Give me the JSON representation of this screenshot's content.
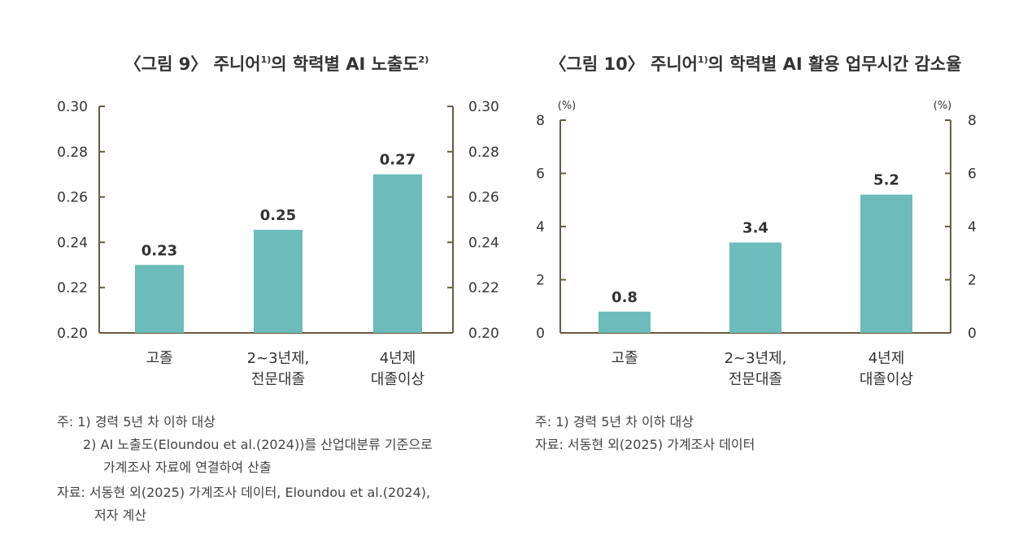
{
  "chart_data": [
    {
      "type": "bar",
      "title": "〈그림 9〉 주니어",
      "title_sup1": "1)",
      "title_mid": "의 학력별 AI 노출도",
      "title_sup2": "2)",
      "categories": [
        [
          "고졸"
        ],
        [
          "2~3년제,",
          "전문대졸"
        ],
        [
          "4년제",
          "대졸이상"
        ]
      ],
      "values": [
        0.23,
        0.25,
        0.27
      ],
      "value_labels": [
        "0.23",
        "0.25",
        "0.27"
      ],
      "bar_heights_data": [
        0.23,
        0.2455,
        0.27
      ],
      "ylim": [
        0.2,
        0.3
      ],
      "yticks": [
        "0.20",
        "0.22",
        "0.24",
        "0.26",
        "0.28",
        "0.30"
      ],
      "yunit": "",
      "color": "#6dbbbb",
      "dual_axis": true
    },
    {
      "type": "bar",
      "title": "〈그림 10〉 주니어",
      "title_sup1": "1)",
      "title_mid": "의 학력별 AI 활용 업무시간 감소율",
      "title_sup2": "",
      "categories": [
        [
          "고졸"
        ],
        [
          "2~3년제,",
          "전문대졸"
        ],
        [
          "4년제",
          "대졸이상"
        ]
      ],
      "values": [
        0.8,
        3.4,
        5.2
      ],
      "value_labels": [
        "0.8",
        "3.4",
        "5.2"
      ],
      "bar_heights_data": [
        0.8,
        3.4,
        5.2
      ],
      "ylim": [
        0,
        8
      ],
      "yticks": [
        "0",
        "2",
        "4",
        "6",
        "8"
      ],
      "yunit": "(%)",
      "color": "#6dbbbb",
      "dual_axis": true
    }
  ],
  "notes_left": [
    "주: 1) 경력 5년 차 이하 대상",
    "2) AI 노출도(Eloundou et al.(2024))를 산업대분류 기준으로",
    "가계조사 자료에 연결하여 산출",
    "자료: 서동현 외(2025) 가계조사 데이터, Eloundou et al.(2024),",
    "저자 계산"
  ],
  "notes_right": [
    "주: 1) 경력 5년 차 이하 대상",
    "자료: 서동현 외(2025) 가계조사 데이터"
  ]
}
